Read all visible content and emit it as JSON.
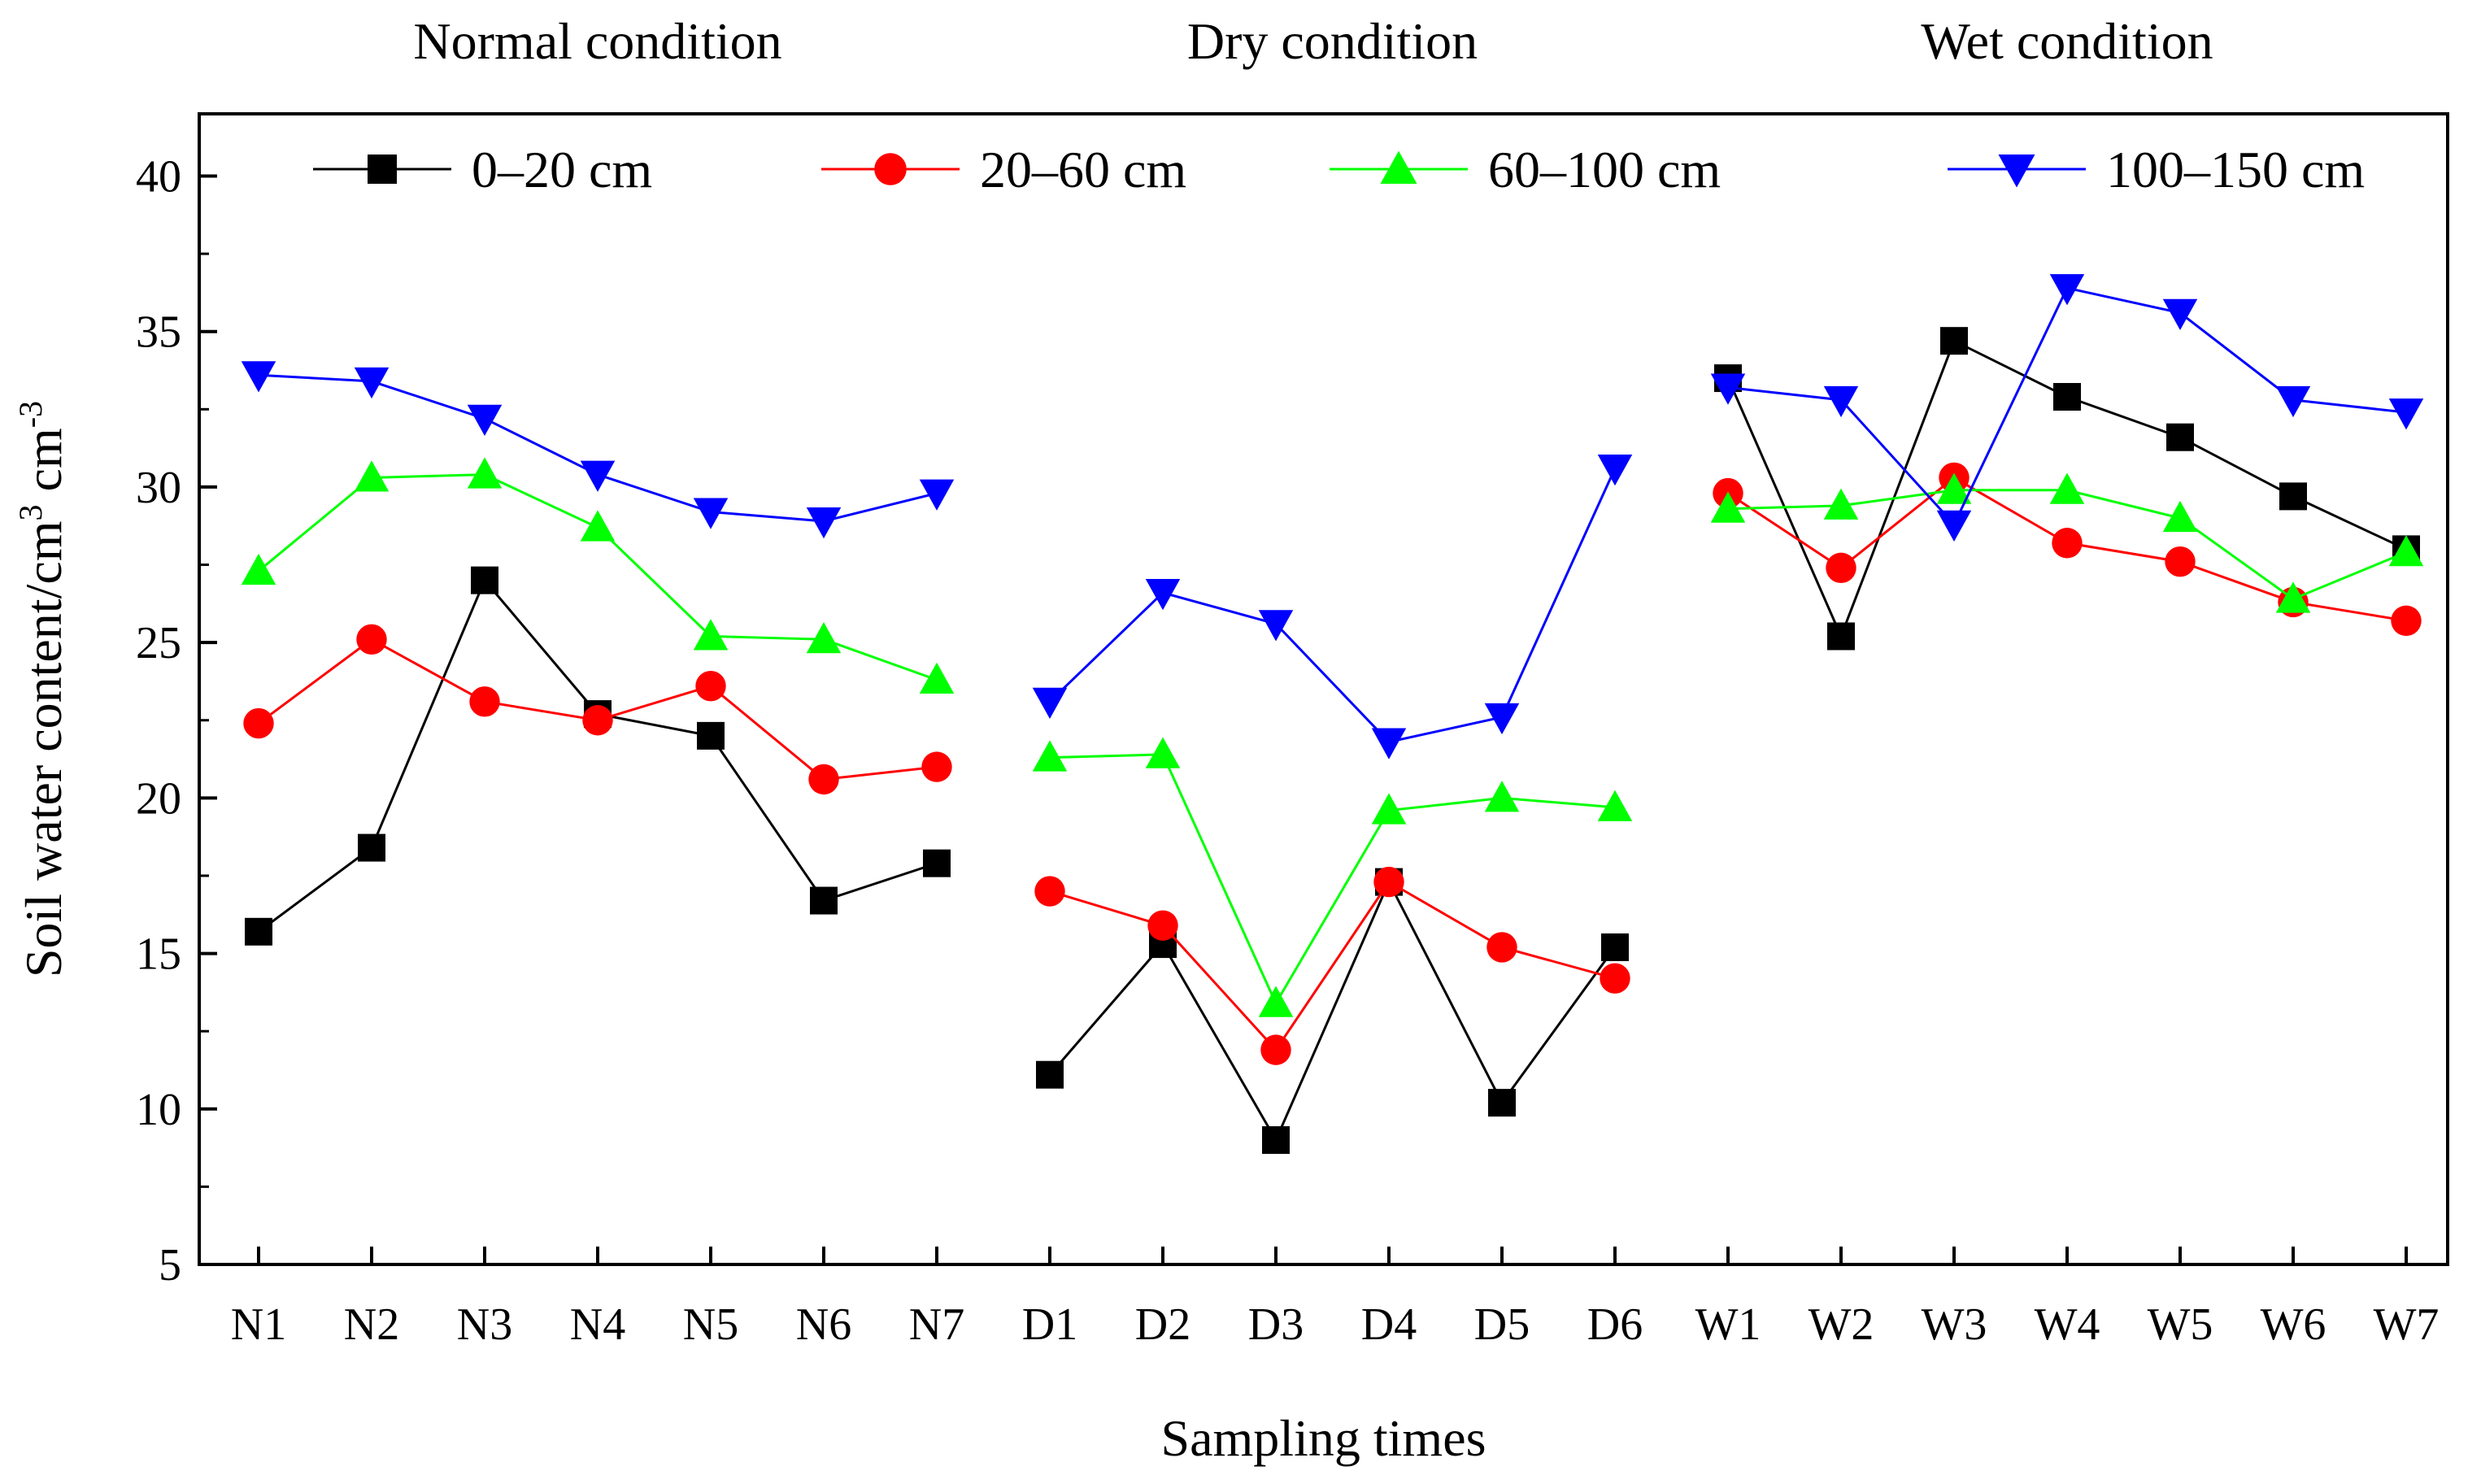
{
  "chart_data": {
    "type": "line",
    "title": "",
    "xlabel": "Sampling times",
    "ylabel": "Soil water content/cm",
    "ylabel_sup1": "3",
    "ylabel_mid": " cm",
    "ylabel_sup2": "-3",
    "ylim": [
      5,
      42
    ],
    "yticks": [
      5,
      10,
      15,
      20,
      25,
      30,
      35,
      40
    ],
    "grid": false,
    "legend_position": "top",
    "categories": [
      "N1",
      "N2",
      "N3",
      "N4",
      "N5",
      "N6",
      "N7",
      "D1",
      "D2",
      "D3",
      "D4",
      "D5",
      "D6",
      "W1",
      "W2",
      "W3",
      "W4",
      "W5",
      "W6",
      "W7"
    ],
    "conditions": [
      {
        "label": "Normal condition",
        "start": 0,
        "end": 6
      },
      {
        "label": "Dry condition",
        "start": 7,
        "end": 12
      },
      {
        "label": "Wet condition",
        "start": 13,
        "end": 19
      }
    ],
    "series": [
      {
        "name": "0–20 cm",
        "color": "#000000",
        "marker": "square",
        "values": [
          15.7,
          18.4,
          27.0,
          22.7,
          22.0,
          16.7,
          17.9,
          11.1,
          15.3,
          9.0,
          17.3,
          10.2,
          15.2,
          33.5,
          25.2,
          34.7,
          32.9,
          31.6,
          29.7,
          28.0
        ]
      },
      {
        "name": "20–60 cm",
        "color": "#ff0000",
        "marker": "circle",
        "values": [
          22.4,
          25.1,
          23.1,
          22.5,
          23.6,
          20.6,
          21.0,
          17.0,
          15.9,
          11.9,
          17.3,
          15.2,
          14.2,
          29.8,
          27.4,
          30.3,
          28.2,
          27.6,
          26.3,
          25.7
        ]
      },
      {
        "name": "60–100 cm",
        "color": "#00ff00",
        "marker": "triangle-up",
        "values": [
          27.3,
          30.3,
          30.4,
          28.7,
          25.2,
          25.1,
          23.8,
          21.3,
          21.4,
          13.4,
          19.6,
          20.0,
          19.7,
          29.3,
          29.4,
          29.9,
          29.9,
          29.0,
          26.4,
          27.9
        ]
      },
      {
        "name": "100–150 cm",
        "color": "#0000ff",
        "marker": "triangle-down",
        "values": [
          33.6,
          33.4,
          32.2,
          30.4,
          29.2,
          28.9,
          29.8,
          23.1,
          26.6,
          25.6,
          21.8,
          22.6,
          30.6,
          33.2,
          32.8,
          28.8,
          36.4,
          35.6,
          32.8,
          32.4
        ]
      }
    ]
  }
}
